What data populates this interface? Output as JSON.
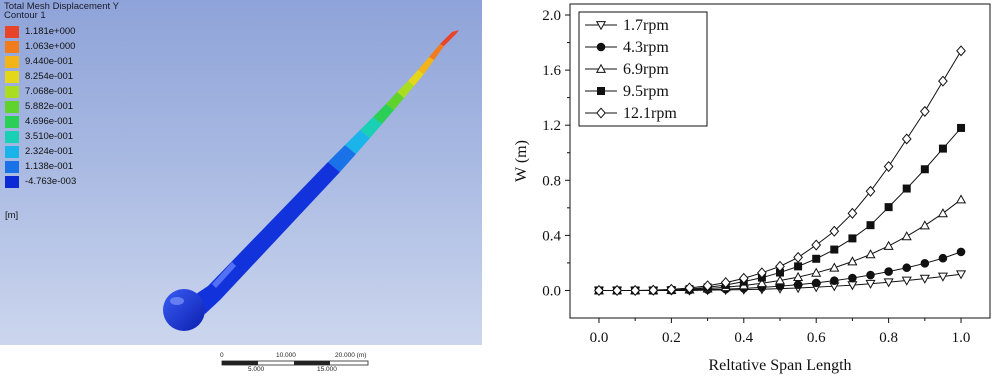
{
  "render": {
    "title_line1": "Total Mesh Displacement Y",
    "title_line2": "Contour 1",
    "unit": "[m]",
    "legend": [
      {
        "label": "1.181e+000",
        "color": "#e8442a"
      },
      {
        "label": "1.063e+000",
        "color": "#f07c1e"
      },
      {
        "label": "9.440e-001",
        "color": "#f2b416"
      },
      {
        "label": "8.254e-001",
        "color": "#e4d71a"
      },
      {
        "label": "7.068e-001",
        "color": "#aadd1f"
      },
      {
        "label": "5.882e-001",
        "color": "#5fd22c"
      },
      {
        "label": "4.696e-001",
        "color": "#2ccf55"
      },
      {
        "label": "3.510e-001",
        "color": "#1ad0b4"
      },
      {
        "label": "2.324e-001",
        "color": "#1ab4ea"
      },
      {
        "label": "1.138e-001",
        "color": "#1a72e8"
      },
      {
        "label": "-4.763e-003",
        "color": "#0b2ad6"
      }
    ],
    "scale_bar": {
      "top_labels": [
        "0",
        "10.000",
        "20.000 (m)"
      ],
      "bottom_labels": [
        "5.000",
        "15.000"
      ]
    }
  },
  "chart_data": {
    "type": "line",
    "xlabel": "Reltative Span Length",
    "ylabel": "W (m)",
    "xlim": [
      -0.08,
      1.08
    ],
    "ylim": [
      -0.2,
      2.08
    ],
    "xticks": [
      "0.0",
      "0.2",
      "0.4",
      "0.6",
      "0.8",
      "1.0"
    ],
    "yticks": [
      "0.0",
      "0.4",
      "0.8",
      "1.2",
      "1.6",
      "2.0"
    ],
    "legend_position": "top-left",
    "x": [
      0,
      0.05,
      0.1,
      0.15,
      0.2,
      0.25,
      0.3,
      0.35,
      0.4,
      0.45,
      0.5,
      0.55,
      0.6,
      0.65,
      0.7,
      0.75,
      0.8,
      0.85,
      0.9,
      0.95,
      1.0
    ],
    "series": [
      {
        "name": "1.7rpm",
        "marker": "triangle-down-open",
        "values": [
          0,
          0,
          0,
          0,
          0,
          0,
          0.002,
          0.004,
          0.006,
          0.009,
          0.013,
          0.018,
          0.024,
          0.031,
          0.039,
          0.049,
          0.06,
          0.072,
          0.086,
          0.101,
          0.118
        ]
      },
      {
        "name": "4.3rpm",
        "marker": "circle-filled",
        "values": [
          0,
          0,
          0,
          0,
          0.001,
          0.003,
          0.006,
          0.01,
          0.015,
          0.022,
          0.031,
          0.042,
          0.055,
          0.071,
          0.09,
          0.112,
          0.137,
          0.165,
          0.197,
          0.234,
          0.28
        ]
      },
      {
        "name": "6.9rpm",
        "marker": "triangle-up-open",
        "values": [
          0,
          0,
          0,
          0,
          0.002,
          0.006,
          0.013,
          0.023,
          0.036,
          0.052,
          0.072,
          0.097,
          0.128,
          0.165,
          0.21,
          0.262,
          0.323,
          0.393,
          0.472,
          0.56,
          0.66
        ]
      },
      {
        "name": "9.5rpm",
        "marker": "square-filled",
        "values": [
          0,
          0,
          0,
          0,
          0.003,
          0.01,
          0.022,
          0.04,
          0.064,
          0.093,
          0.13,
          0.175,
          0.23,
          0.297,
          0.378,
          0.474,
          0.605,
          0.74,
          0.88,
          1.03,
          1.18
        ]
      },
      {
        "name": "12.1rpm",
        "marker": "diamond-open",
        "values": [
          0,
          0,
          0,
          0.002,
          0.008,
          0.018,
          0.034,
          0.057,
          0.088,
          0.128,
          0.175,
          0.24,
          0.33,
          0.43,
          0.56,
          0.72,
          0.9,
          1.1,
          1.3,
          1.52,
          1.74
        ]
      }
    ]
  }
}
